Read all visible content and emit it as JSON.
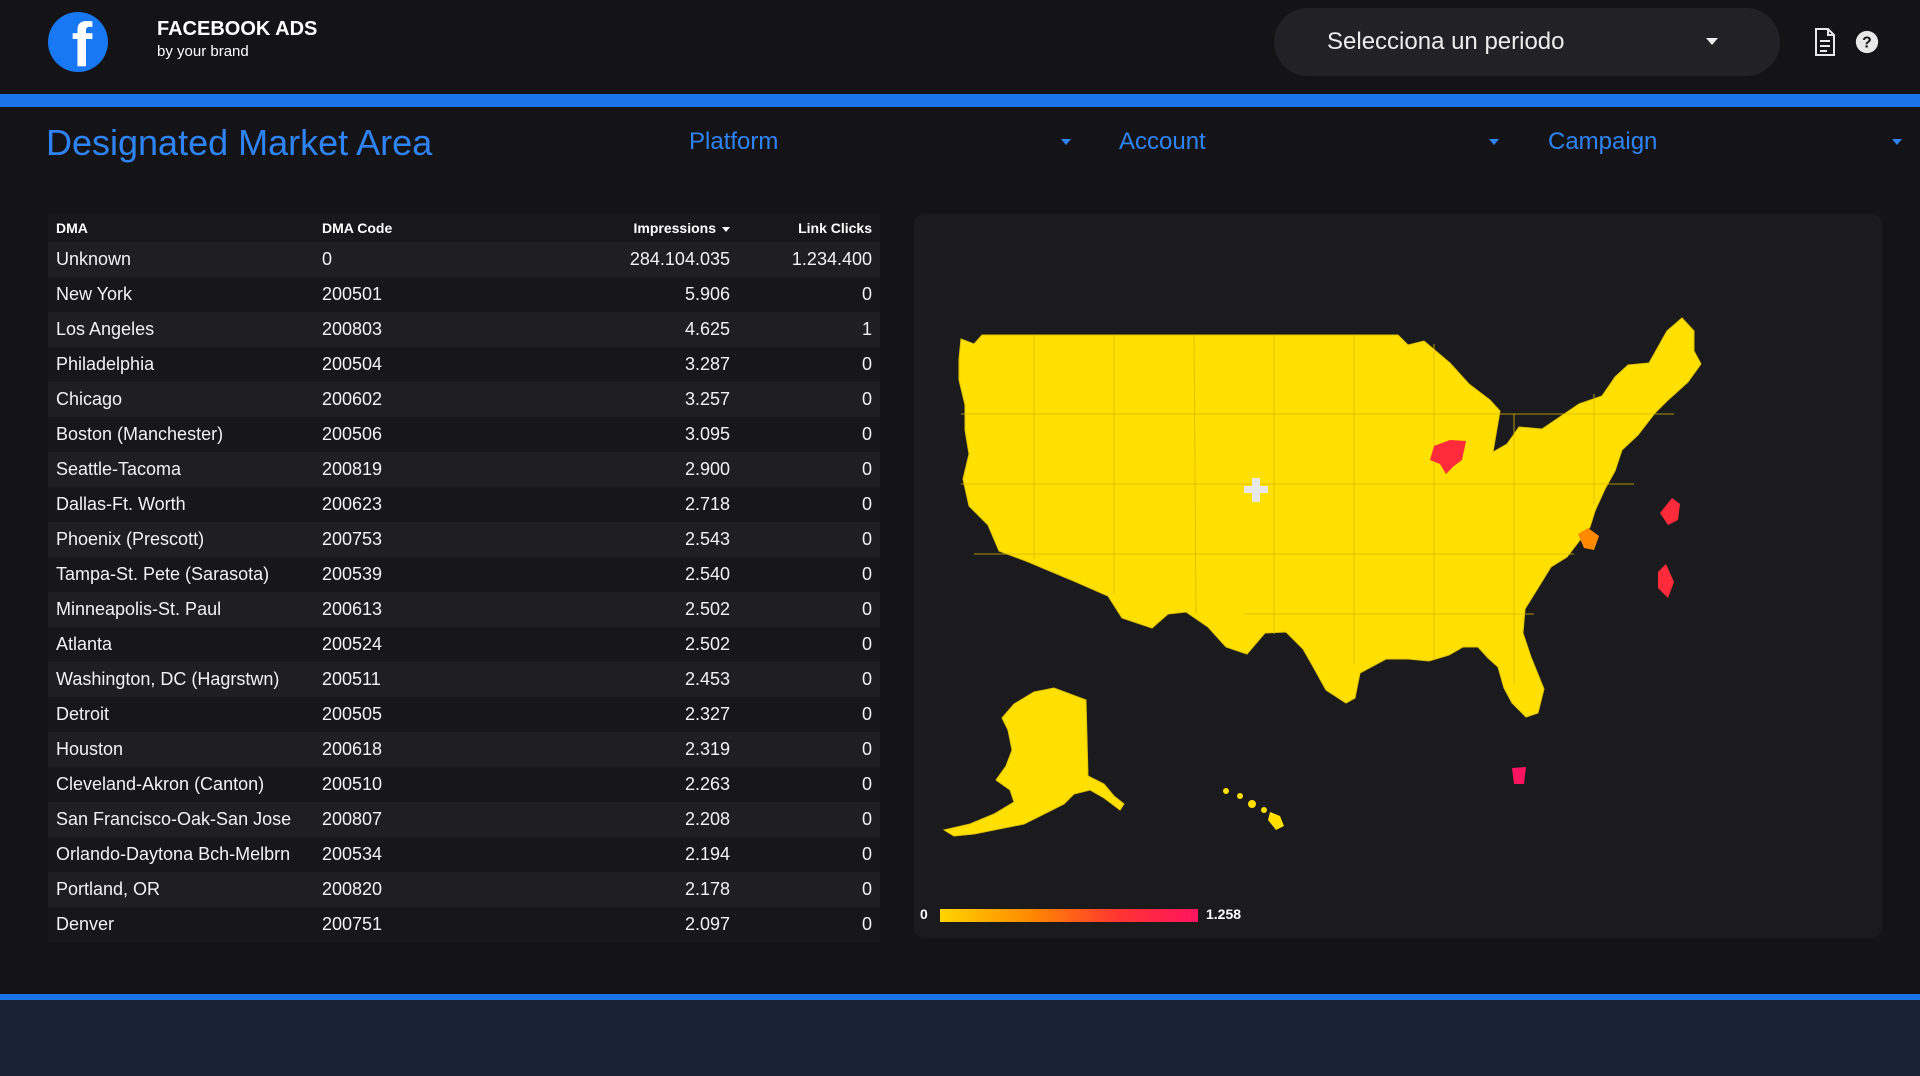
{
  "header": {
    "brand_title": "FACEBOOK ADS",
    "brand_subtitle": "by your brand",
    "logo_letter": "f",
    "period_placeholder": "Selecciona un periodo",
    "icons": [
      "document-icon",
      "help-icon"
    ]
  },
  "page": {
    "title": "Designated Market Area"
  },
  "filters": {
    "platform": "Platform",
    "account": "Account",
    "campaign": "Campaign"
  },
  "table": {
    "columns": [
      "DMA",
      "DMA Code",
      "Impressions",
      "Link Clicks"
    ],
    "sorted_by": "Impressions",
    "rows": [
      [
        "Unknown",
        "0",
        "284.104.035",
        "1.234.400"
      ],
      [
        "New York",
        "200501",
        "5.906",
        "0"
      ],
      [
        "Los Angeles",
        "200803",
        "4.625",
        "1"
      ],
      [
        "Philadelphia",
        "200504",
        "3.287",
        "0"
      ],
      [
        "Chicago",
        "200602",
        "3.257",
        "0"
      ],
      [
        "Boston (Manchester)",
        "200506",
        "3.095",
        "0"
      ],
      [
        "Seattle-Tacoma",
        "200819",
        "2.900",
        "0"
      ],
      [
        "Dallas-Ft. Worth",
        "200623",
        "2.718",
        "0"
      ],
      [
        "Phoenix (Prescott)",
        "200753",
        "2.543",
        "0"
      ],
      [
        "Tampa-St. Pete (Sarasota)",
        "200539",
        "2.540",
        "0"
      ],
      [
        "Minneapolis-St. Paul",
        "200613",
        "2.502",
        "0"
      ],
      [
        "Atlanta",
        "200524",
        "2.502",
        "0"
      ],
      [
        "Washington, DC (Hagrstwn)",
        "200511",
        "2.453",
        "0"
      ],
      [
        "Detroit",
        "200505",
        "2.327",
        "0"
      ],
      [
        "Houston",
        "200618",
        "2.319",
        "0"
      ],
      [
        "Cleveland-Akron (Canton)",
        "200510",
        "2.263",
        "0"
      ],
      [
        "San Francisco-Oak-San Jose",
        "200807",
        "2.208",
        "0"
      ],
      [
        "Orlando-Daytona Bch-Melbrn",
        "200534",
        "2.194",
        "0"
      ],
      [
        "Portland, OR",
        "200820",
        "2.178",
        "0"
      ],
      [
        "Denver",
        "200751",
        "2.097",
        "0"
      ]
    ]
  },
  "map": {
    "legend_min": "0",
    "legend_max": "1.258",
    "colors": {
      "low": "#ffe000",
      "mid": "#ff8a00",
      "high": "#ff2a3a",
      "no_data": "#e8e8e8"
    }
  },
  "colors": {
    "accent": "#1a73e8",
    "title": "#2f84f5",
    "background": "#141416",
    "footer": "#1a2333"
  }
}
